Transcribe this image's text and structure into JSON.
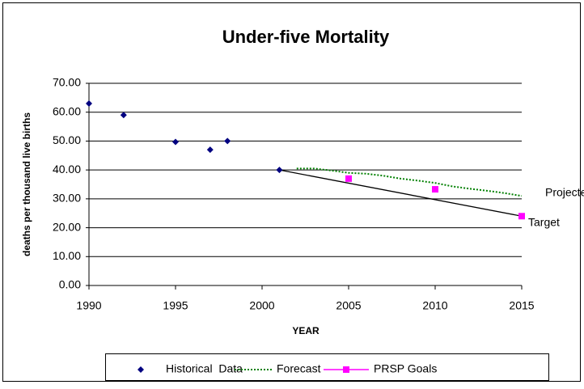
{
  "chart_data": {
    "type": "scatter-line",
    "title": "Under-five Mortality",
    "xlabel": "YEAR",
    "ylabel": "deaths per thousand live births",
    "xlim": [
      1990,
      2015
    ],
    "xticks": [
      1990,
      1995,
      2000,
      2005,
      2010,
      2015
    ],
    "ylim": [
      0,
      70
    ],
    "yticks": [
      {
        "value": 0,
        "label": "0.00"
      },
      {
        "value": 10,
        "label": "10.00"
      },
      {
        "value": 20,
        "label": "20.00"
      },
      {
        "value": 30,
        "label": "30.00"
      },
      {
        "value": 40,
        "label": "40.00"
      },
      {
        "value": 50,
        "label": "50.00"
      },
      {
        "value": 60,
        "label": "60.00"
      },
      {
        "value": 70,
        "label": "70.00"
      }
    ],
    "grid": true,
    "legend": "bottom",
    "series": [
      {
        "name": "Historical  Data",
        "color": "#000080",
        "style": "markers",
        "marker": "diamond",
        "x": [
          1990,
          1992,
          1995,
          1997,
          1998,
          2001
        ],
        "values": [
          63,
          59,
          49.7,
          47,
          50,
          40
        ]
      },
      {
        "name": "Forecast",
        "color": "#008000",
        "style": "dotted",
        "x": [
          2002,
          2003,
          2004,
          2005,
          2006,
          2007,
          2008,
          2009,
          2010,
          2011,
          2012,
          2013,
          2014,
          2015
        ],
        "values": [
          40.5,
          40.5,
          39.8,
          39,
          38.7,
          38,
          37,
          36.3,
          35.5,
          34.3,
          33.5,
          32.8,
          32,
          31
        ]
      },
      {
        "name": "PRSP Goals",
        "color": "#ff00ff",
        "style": "markers",
        "marker": "square",
        "x": [
          2005,
          2010,
          2015
        ],
        "values": [
          37,
          33.3,
          24
        ]
      }
    ],
    "target_line": {
      "color": "#000000",
      "x": [
        2001,
        2015
      ],
      "values": [
        40,
        24
      ]
    },
    "annotations": [
      "Projected",
      "Target"
    ]
  }
}
